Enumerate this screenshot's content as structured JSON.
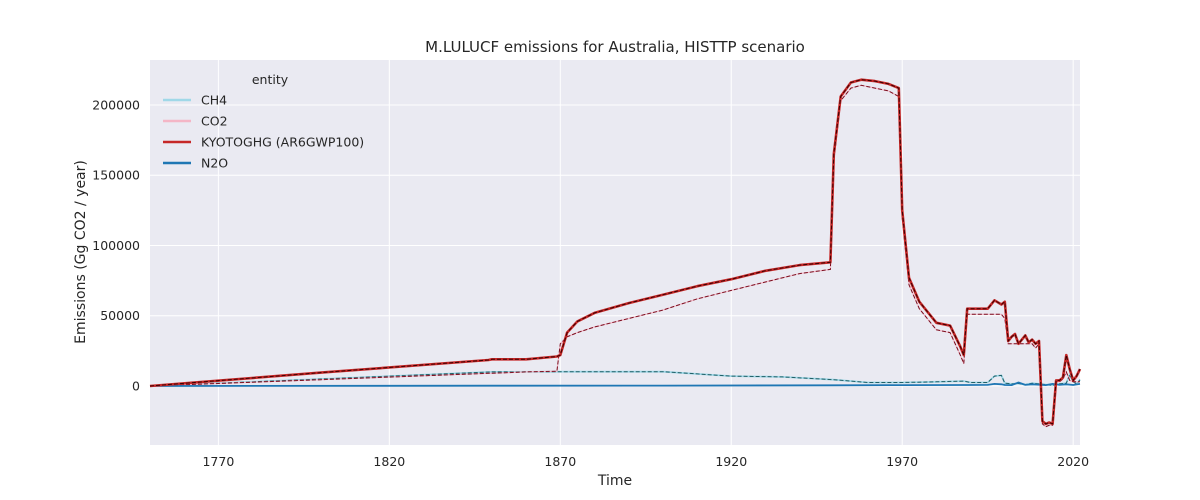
{
  "chart_data": {
    "type": "line",
    "title": "M.LULUCF emissions for Australia, HISTTP scenario",
    "xlabel": "Time",
    "ylabel": "Emissions (Gg CO2 / year)",
    "xlim": [
      1750,
      2022
    ],
    "ylim": [
      -42000,
      232000
    ],
    "xticks": [
      1770,
      1820,
      1870,
      1920,
      1970,
      2020
    ],
    "yticks": [
      0,
      50000,
      100000,
      150000,
      200000
    ],
    "ytick_labels": [
      "0",
      "50000",
      "100000",
      "150000",
      "200000"
    ],
    "grid": true,
    "legend": {
      "title": "entity",
      "placement": "top-left"
    },
    "series": [
      {
        "name": "CH4",
        "color": "#a0d8e8",
        "style": "solid",
        "x": [
          1750,
          1800,
          1850,
          1870,
          1900,
          1920,
          1935,
          1950,
          1960,
          1970,
          1980,
          1988,
          1990,
          1995,
          1997,
          1999,
          2000,
          2002,
          2004,
          2006,
          2008,
          2010,
          2012,
          2014,
          2016,
          2018,
          2019,
          2020,
          2021,
          2022
        ],
        "y": [
          0,
          5000,
          10000,
          10200,
          10200,
          7000,
          6500,
          4500,
          2500,
          2500,
          3000,
          3500,
          2500,
          2500,
          7000,
          7500,
          2000,
          1500,
          1800,
          1000,
          2000,
          1500,
          1000,
          500,
          1500,
          2000,
          8000,
          3000,
          1500,
          4500
        ]
      },
      {
        "name": "CO2",
        "color": "#f4b6c6",
        "style": "solid",
        "x": [
          1750,
          1800,
          1849,
          1850,
          1860,
          1869,
          1870,
          1872,
          1875,
          1880,
          1890,
          1900,
          1910,
          1920,
          1930,
          1940,
          1949,
          1950,
          1952,
          1955,
          1958,
          1962,
          1966,
          1969,
          1970,
          1972,
          1975,
          1980,
          1984,
          1987,
          1988,
          1989,
          1991,
          1993,
          1995,
          1997,
          1999,
          2000,
          2001,
          2002,
          2003,
          2004,
          2005,
          2006,
          2007,
          2008,
          2009,
          2010,
          2011,
          2012,
          2013,
          2014,
          2015,
          2016,
          2017,
          2018,
          2019,
          2020,
          2021,
          2022
        ],
        "y": [
          0,
          4500,
          9000,
          9000,
          10000,
          10500,
          30000,
          35000,
          38000,
          42000,
          48000,
          54000,
          62000,
          68000,
          74000,
          80000,
          83000,
          160000,
          203000,
          212000,
          214000,
          212000,
          210000,
          206000,
          120000,
          72000,
          55000,
          40000,
          38000,
          22000,
          16000,
          51000,
          51000,
          51000,
          51000,
          51000,
          51000,
          48000,
          30000,
          30000,
          30000,
          30000,
          30000,
          30000,
          30000,
          30000,
          27000,
          30000,
          -27000,
          -29000,
          -28000,
          -28000,
          3000,
          3000,
          5000,
          10000,
          4000,
          3000,
          3000,
          3000
        ]
      },
      {
        "name": "KYOTOGHG (AR6GWP100)",
        "color": "#c62828",
        "style": "solid",
        "x": [
          1750,
          1800,
          1849,
          1850,
          1860,
          1869,
          1870,
          1872,
          1875,
          1880,
          1890,
          1900,
          1910,
          1920,
          1930,
          1940,
          1949,
          1950,
          1952,
          1955,
          1958,
          1962,
          1966,
          1969,
          1970,
          1972,
          1975,
          1980,
          1984,
          1987,
          1988,
          1989,
          1991,
          1993,
          1995,
          1997,
          1999,
          2000,
          2001,
          2002,
          2003,
          2004,
          2005,
          2006,
          2007,
          2008,
          2009,
          2010,
          2011,
          2012,
          2013,
          2014,
          2015,
          2016,
          2017,
          2018,
          2019,
          2020,
          2021,
          2022
        ],
        "y": [
          0,
          9500,
          18500,
          19000,
          19000,
          21000,
          22000,
          38000,
          46000,
          52000,
          59000,
          65000,
          71000,
          76000,
          82000,
          86000,
          88000,
          165000,
          206000,
          216000,
          218000,
          217000,
          215000,
          212000,
          125000,
          77000,
          60000,
          45000,
          43000,
          28000,
          22000,
          55000,
          55000,
          55000,
          55000,
          61000,
          58000,
          60000,
          32000,
          35000,
          37000,
          30000,
          33000,
          36000,
          31000,
          33000,
          30000,
          32000,
          -25000,
          -27000,
          -26000,
          -27000,
          4000,
          4000,
          6000,
          22000,
          12000,
          4000,
          7000,
          12000
        ]
      },
      {
        "name": "N2O",
        "color": "#1f77b4",
        "style": "solid",
        "x": [
          1750,
          1850,
          1900,
          1950,
          1970,
          1990,
          1995,
          1997,
          1999,
          2000,
          2002,
          2004,
          2006,
          2008,
          2010,
          2012,
          2014,
          2016,
          2018,
          2020,
          2022
        ],
        "y": [
          0,
          200,
          300,
          500,
          600,
          700,
          800,
          1500,
          1200,
          700,
          600,
          2500,
          800,
          1200,
          900,
          600,
          1500,
          800,
          1200,
          700,
          1500
        ]
      }
    ]
  }
}
